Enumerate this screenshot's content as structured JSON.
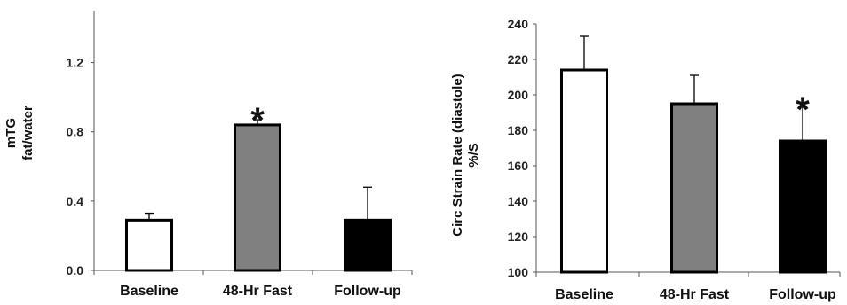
{
  "chart_data": [
    {
      "type": "bar",
      "ylabel_lines": [
        "mTG",
        "fat/water"
      ],
      "categories": [
        "Baseline",
        "48-Hr Fast",
        "Follow-up"
      ],
      "values": [
        0.29,
        0.84,
        0.29
      ],
      "errors": [
        0.04,
        0.03,
        0.19
      ],
      "fills": [
        "#ffffff",
        "#808080",
        "#000000"
      ],
      "ylim": [
        0.0,
        1.5
      ],
      "yticks": [
        0.0,
        0.4,
        0.8,
        1.2
      ],
      "ytick_labels": [
        "0.0",
        "0.4",
        "0.8",
        "1.2"
      ],
      "significance": [
        "",
        "*",
        ""
      ]
    },
    {
      "type": "bar",
      "ylabel_lines": [
        "Circ Strain Rate (diastole)",
        "%/S"
      ],
      "categories": [
        "Baseline",
        "48-Hr Fast",
        "Follow-up"
      ],
      "values": [
        214,
        195,
        174
      ],
      "errors": [
        19,
        16,
        19
      ],
      "fills": [
        "#ffffff",
        "#808080",
        "#000000"
      ],
      "ylim": [
        100,
        240
      ],
      "yticks": [
        100,
        120,
        140,
        160,
        180,
        200,
        220,
        240
      ],
      "ytick_labels": [
        "100",
        "120",
        "140",
        "160",
        "180",
        "200",
        "220",
        "240"
      ],
      "significance": [
        "",
        "",
        "*"
      ]
    }
  ]
}
